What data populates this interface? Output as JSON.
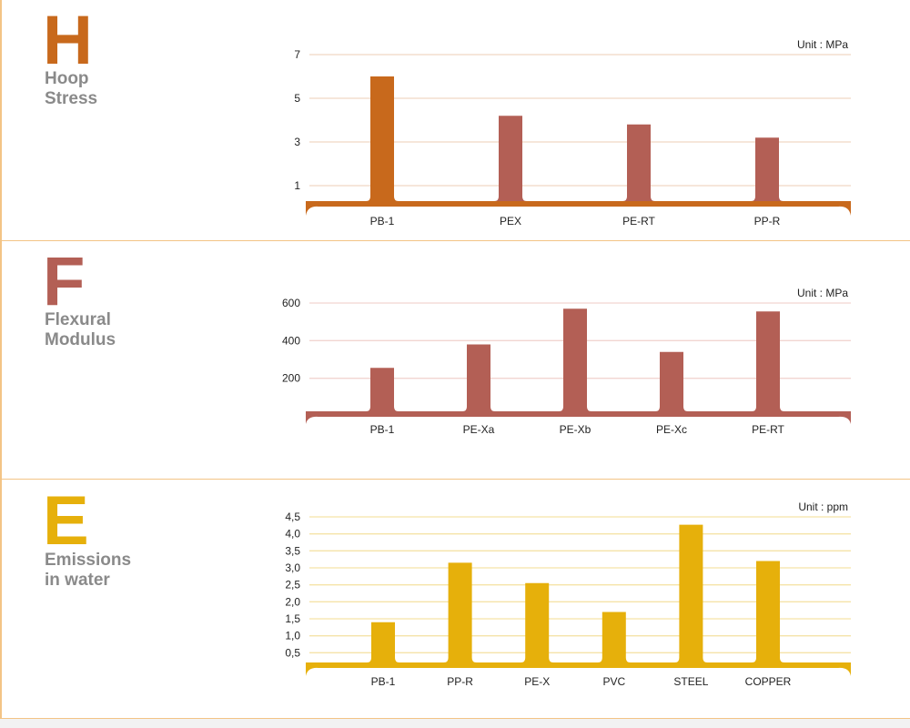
{
  "chart_data": [
    {
      "type": "bar",
      "letter": "H",
      "title": "Hoop Stress",
      "title_lines": [
        "Hoop",
        "Stress"
      ],
      "unit": "Unit : MPa",
      "color": "#c8691c",
      "axis_color": "#c8691c",
      "grid_color": "#f1d6c4",
      "ylim": [
        0,
        7
      ],
      "yticks": [
        1,
        3,
        5,
        7
      ],
      "ytick_labels": [
        "1",
        "3",
        "5",
        "7"
      ],
      "categories": [
        "PB-1",
        "PEX",
        "PE-RT",
        "PP-R"
      ],
      "values": [
        6.0,
        4.2,
        3.8,
        3.2
      ],
      "bar_colors": [
        "#c8691c",
        "#b35f55",
        "#b35f55",
        "#b35f55"
      ]
    },
    {
      "type": "bar",
      "letter": "F",
      "title": "Flexural Modulus",
      "title_lines": [
        "Flexural",
        "Modulus"
      ],
      "unit": "Unit : MPa",
      "color": "#b35f55",
      "axis_color": "#b35f55",
      "grid_color": "#f2d5d1",
      "ylim": [
        0,
        680
      ],
      "yticks": [
        200,
        400,
        600
      ],
      "ytick_labels": [
        "200",
        "400",
        "600"
      ],
      "categories": [
        "PB-1",
        "PE-Xa",
        "PE-Xb",
        "PE-Xc",
        "PE-RT"
      ],
      "values": [
        255,
        380,
        570,
        340,
        555
      ],
      "bar_colors": [
        "#b35f55",
        "#b35f55",
        "#b35f55",
        "#b35f55",
        "#b35f55"
      ]
    },
    {
      "type": "bar",
      "letter": "E",
      "title": "Emissions in water",
      "title_lines": [
        "Emissions",
        "in water"
      ],
      "unit": "Unit : ppm",
      "color": "#e6b00b",
      "axis_color": "#e6b00b",
      "grid_color": "#f5e3a8",
      "ylim": [
        0,
        4.5
      ],
      "yticks": [
        0.5,
        1.0,
        1.5,
        2.0,
        2.5,
        3.0,
        3.5,
        4.0,
        4.5
      ],
      "ytick_labels": [
        "0,5",
        "1,0",
        "1,5",
        "2,0",
        "2,5",
        "3,0",
        "3,5",
        "4,0",
        "4,5"
      ],
      "categories": [
        "PB-1",
        "PP-R",
        "PE-X",
        "PVC",
        "STEEL",
        "COPPER"
      ],
      "values": [
        1.4,
        3.15,
        2.55,
        1.7,
        4.27,
        3.2
      ],
      "bar_colors": [
        "#e6b00b",
        "#e6b00b",
        "#e6b00b",
        "#e6b00b",
        "#e6b00b",
        "#e6b00b"
      ]
    }
  ]
}
